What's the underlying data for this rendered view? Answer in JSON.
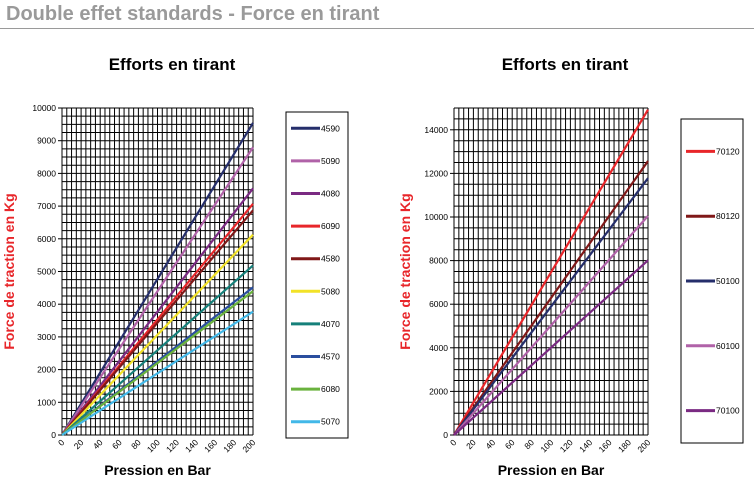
{
  "page_title": "Double effet standards - Force en tirant",
  "chart_data": [
    {
      "type": "line",
      "title": "Efforts en tirant",
      "xlabel": "Pression en Bar",
      "ylabel": "Force de traction en Kg",
      "xlim": [
        0,
        200
      ],
      "ylim": [
        0,
        10000
      ],
      "xticks": [
        0,
        20,
        40,
        60,
        80,
        100,
        120,
        140,
        160,
        180,
        200
      ],
      "yticks": [
        0,
        1000,
        2000,
        3000,
        4000,
        5000,
        6000,
        7000,
        8000,
        9000,
        10000
      ],
      "grid": true,
      "grid_x_step": 5,
      "grid_y_step": 250,
      "legend": "right",
      "x": [
        0,
        200
      ],
      "series": [
        {
          "name": "4590",
          "color": "#252e6b",
          "values": [
            0,
            9543
          ]
        },
        {
          "name": "5090",
          "color": "#b062a8",
          "values": [
            0,
            8796
          ]
        },
        {
          "name": "4080",
          "color": "#7a2a82",
          "values": [
            0,
            7540
          ]
        },
        {
          "name": "6090",
          "color": "#e8262a",
          "values": [
            0,
            7069
          ]
        },
        {
          "name": "4580",
          "color": "#801818",
          "values": [
            0,
            6872
          ]
        },
        {
          "name": "5080",
          "color": "#f2e227",
          "values": [
            0,
            6126
          ]
        },
        {
          "name": "4070",
          "color": "#16807a",
          "values": [
            0,
            5184
          ]
        },
        {
          "name": "4570",
          "color": "#2a4e9e",
          "values": [
            0,
            4516
          ]
        },
        {
          "name": "6080",
          "color": "#6ab23e",
          "values": [
            0,
            4398
          ]
        },
        {
          "name": "5070",
          "color": "#42b8e8",
          "values": [
            0,
            3770
          ]
        }
      ]
    },
    {
      "type": "line",
      "title": "Efforts en tirant",
      "xlabel": "Pression en Bar",
      "ylabel": "Force de traction en Kg",
      "xlim": [
        0,
        200
      ],
      "ylim": [
        0,
        15000
      ],
      "xticks": [
        0,
        20,
        40,
        60,
        80,
        100,
        120,
        140,
        160,
        180,
        200
      ],
      "yticks": [
        0,
        2000,
        4000,
        6000,
        8000,
        10000,
        12000,
        14000
      ],
      "grid": true,
      "grid_x_step": 5,
      "grid_y_step": 500,
      "legend": "right",
      "x": [
        0,
        200
      ],
      "series": [
        {
          "name": "70120",
          "color": "#e8262a",
          "values": [
            0,
            14923
          ]
        },
        {
          "name": "80120",
          "color": "#801818",
          "values": [
            0,
            12566
          ]
        },
        {
          "name": "50100",
          "color": "#252e6b",
          "values": [
            0,
            11781
          ]
        },
        {
          "name": "60100",
          "color": "#b062a8",
          "values": [
            0,
            10053
          ]
        },
        {
          "name": "70100",
          "color": "#7a2a82",
          "values": [
            0,
            8011
          ]
        }
      ]
    }
  ]
}
